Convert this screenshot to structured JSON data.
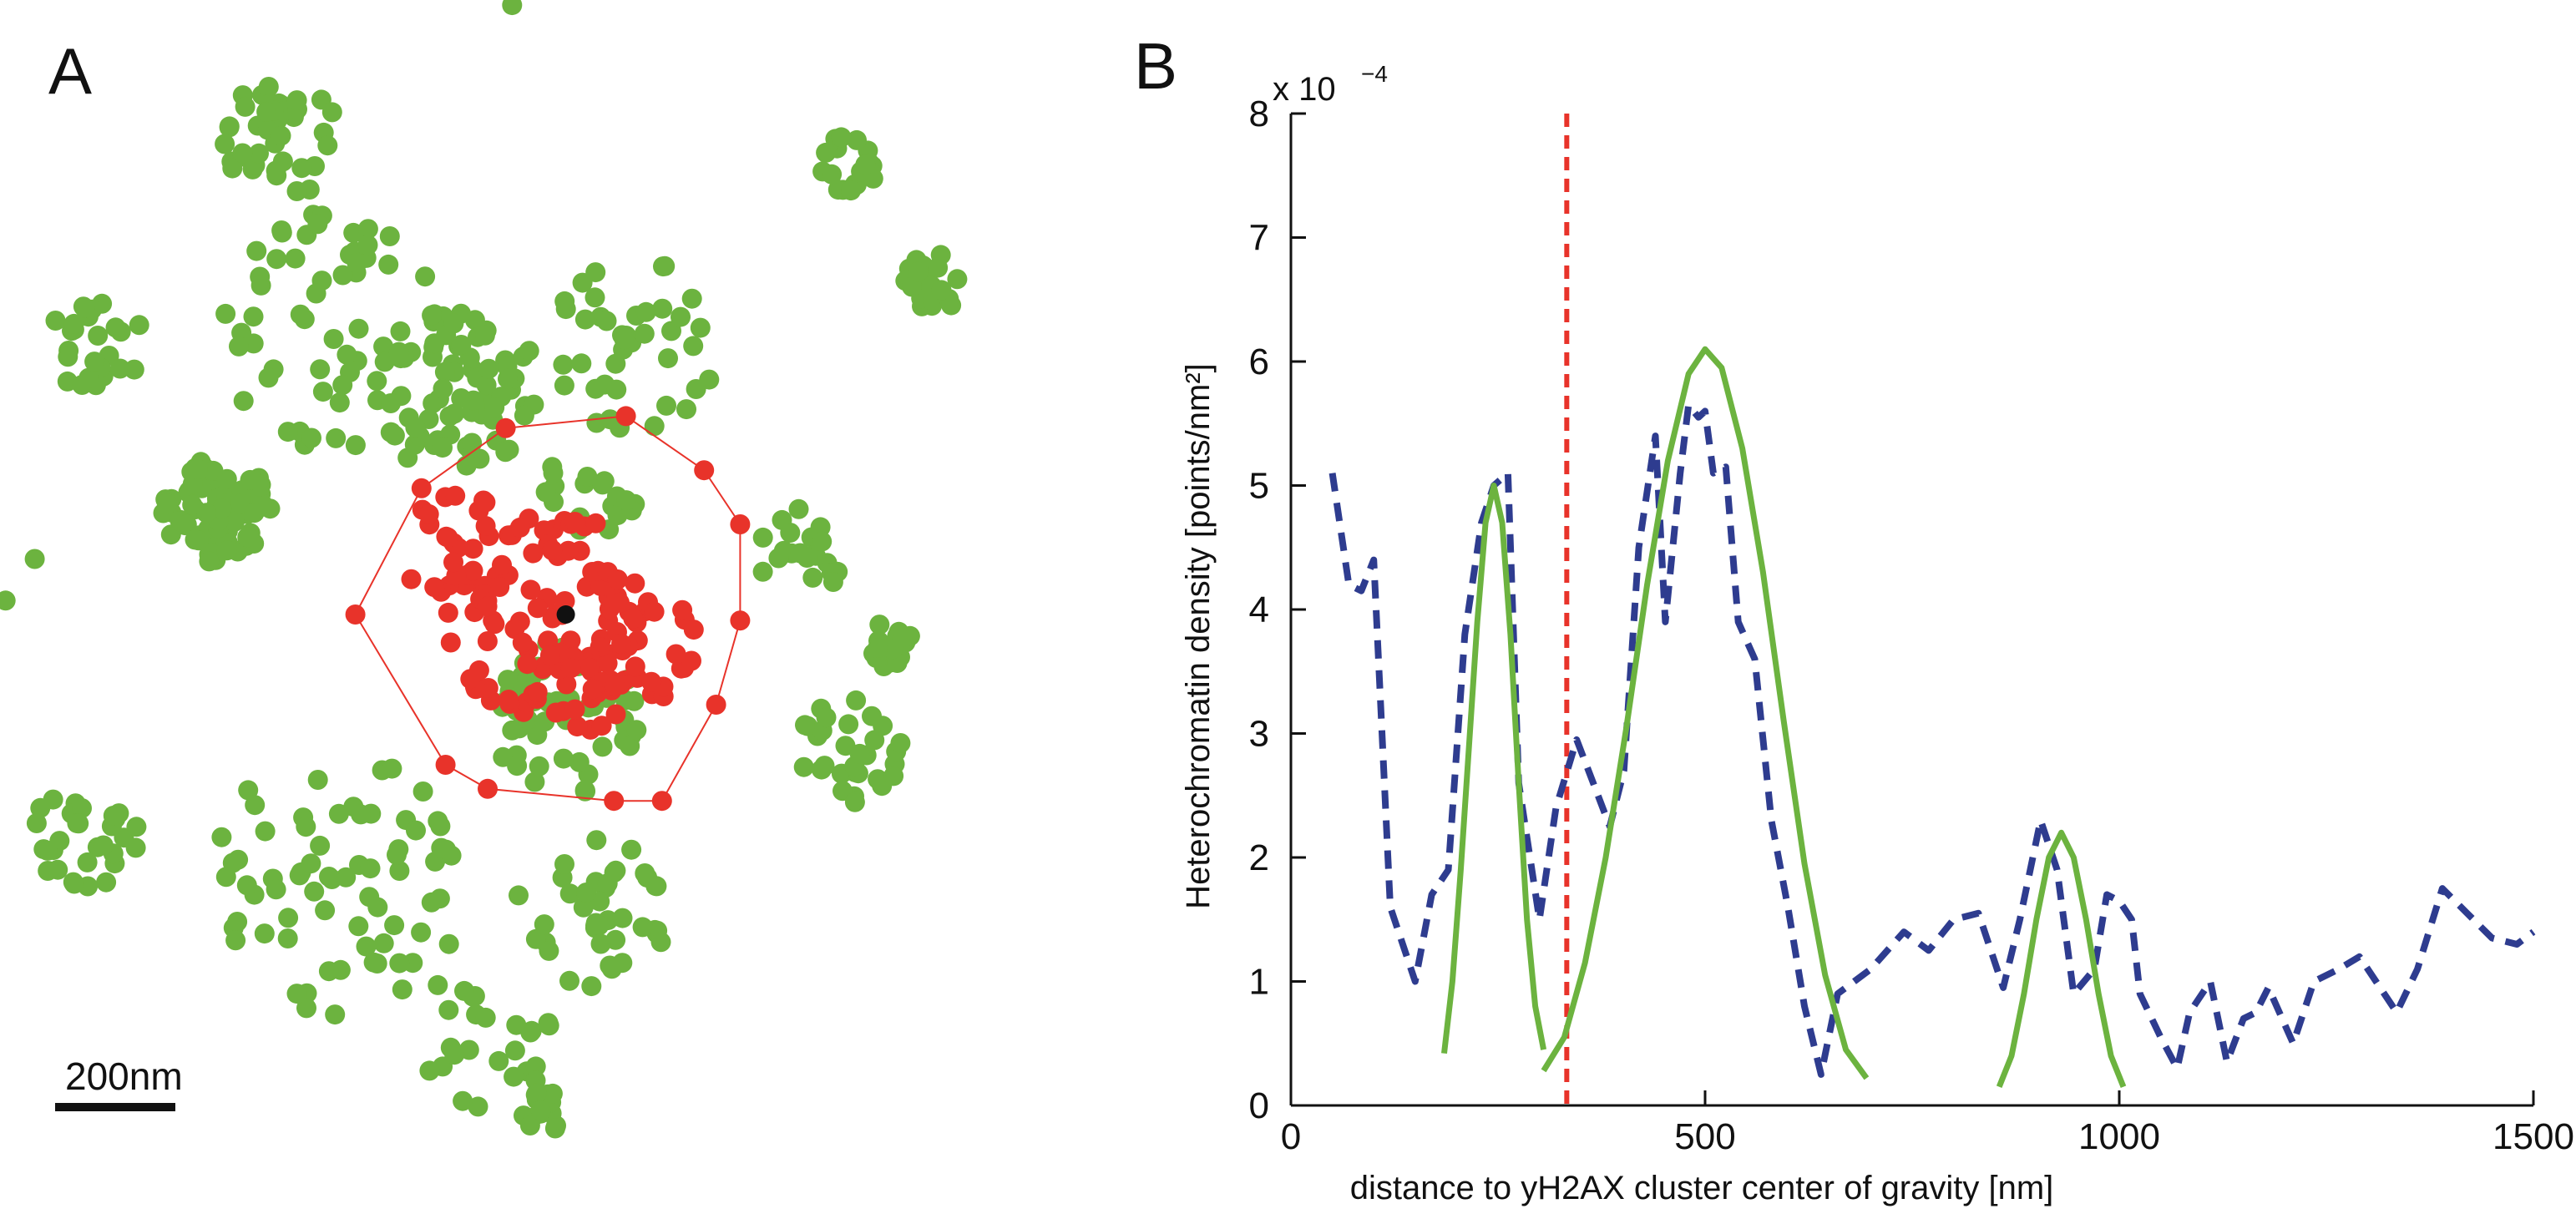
{
  "panels": {
    "a": {
      "letter": "A",
      "scale_bar_label": "200nm"
    },
    "b": {
      "letter": "B",
      "exponent_base": "x 10",
      "exponent_power": "−4"
    }
  },
  "colors": {
    "green_points": "#6cb33f",
    "red_points": "#e8332a",
    "center_point": "#111111",
    "dashed_density": "#2e3c8f",
    "fit_curves": "#6cb33f",
    "reference_line": "#e8332a",
    "axes": "#111111"
  },
  "chart_data": [
    {
      "type": "scatter",
      "panel": "A",
      "scale_bar": "200nm",
      "notes": "Localization scatter: green heterochromatin points, red yH2AX cluster points enclosed by convex hull, black centre of gravity.",
      "clusters_green": [
        {
          "cx": 0,
          "cy": -0.95,
          "r": 0.03,
          "n": 1
        },
        {
          "cx": -0.39,
          "cy": -0.74,
          "r": 0.1,
          "n": 40
        },
        {
          "cx": 0.55,
          "cy": -0.7,
          "r": 0.05,
          "n": 18
        },
        {
          "cx": 0.69,
          "cy": -0.5,
          "r": 0.05,
          "n": 22
        },
        {
          "cx": -0.7,
          "cy": -0.4,
          "r": 0.08,
          "n": 25
        },
        {
          "cx": -0.3,
          "cy": -0.42,
          "r": 0.2,
          "n": 60
        },
        {
          "cx": -0.1,
          "cy": -0.32,
          "r": 0.14,
          "n": 70
        },
        {
          "cx": 0.2,
          "cy": -0.4,
          "r": 0.15,
          "n": 40
        },
        {
          "cx": -0.5,
          "cy": -0.12,
          "r": 0.09,
          "n": 80
        },
        {
          "cx": -0.85,
          "cy": -0.05,
          "r": 0.1,
          "n": 8
        },
        {
          "cx": 0.12,
          "cy": -0.15,
          "r": 0.08,
          "n": 18
        },
        {
          "cx": 0.47,
          "cy": -0.05,
          "r": 0.08,
          "n": 20
        },
        {
          "cx": 0.62,
          "cy": 0.1,
          "r": 0.04,
          "n": 20
        },
        {
          "cx": 0.55,
          "cy": 0.28,
          "r": 0.09,
          "n": 30
        },
        {
          "cx": 0.08,
          "cy": 0.22,
          "r": 0.13,
          "n": 60
        },
        {
          "cx": -0.72,
          "cy": 0.42,
          "r": 0.09,
          "n": 30
        },
        {
          "cx": -0.3,
          "cy": 0.5,
          "r": 0.22,
          "n": 70
        },
        {
          "cx": 0.12,
          "cy": 0.55,
          "r": 0.13,
          "n": 40
        },
        {
          "cx": -0.05,
          "cy": 0.75,
          "r": 0.12,
          "n": 25
        },
        {
          "cx": 0.04,
          "cy": 0.88,
          "r": 0.04,
          "n": 18
        }
      ],
      "clusters_red": [
        {
          "cx": 0.05,
          "cy": 0.05,
          "r": 0.18,
          "n": 90
        },
        {
          "cx": -0.1,
          "cy": -0.05,
          "r": 0.1,
          "n": 25
        },
        {
          "cx": 0.18,
          "cy": 0.1,
          "r": 0.12,
          "n": 30
        },
        {
          "cx": 0.1,
          "cy": 0.18,
          "r": 0.08,
          "n": 15
        }
      ],
      "hull": [
        [
          -0.27,
          0.05
        ],
        [
          -0.16,
          -0.16
        ],
        [
          -0.02,
          -0.26
        ],
        [
          0.18,
          -0.28
        ],
        [
          0.31,
          -0.19
        ],
        [
          0.37,
          -0.1
        ],
        [
          0.37,
          0.06
        ],
        [
          0.33,
          0.2
        ],
        [
          0.24,
          0.36
        ],
        [
          0.16,
          0.36
        ],
        [
          -0.05,
          0.34
        ],
        [
          -0.12,
          0.3
        ]
      ],
      "center": [
        0.08,
        0.05
      ]
    },
    {
      "type": "line",
      "panel": "B",
      "xlabel": "distance to yH2AX cluster center of gravity [nm]",
      "ylabel": "Heterochromatin density [points/nm²]",
      "y_multiplier": "x 10^-4",
      "xlim": [
        0,
        1500
      ],
      "ylim": [
        0,
        8
      ],
      "xticks": [
        0,
        500,
        1000,
        1500
      ],
      "yticks": [
        0,
        1,
        2,
        3,
        4,
        5,
        6,
        7,
        8
      ],
      "reference_line_x": 333,
      "series": [
        {
          "style": "dashed",
          "x": [
            50,
            70,
            85,
            100,
            120,
            150,
            170,
            190,
            210,
            230,
            245,
            262,
            275,
            300,
            320,
            345,
            365,
            385,
            402,
            420,
            440,
            452,
            470,
            480,
            492,
            500,
            510,
            525,
            540,
            560,
            580,
            600,
            620,
            640,
            660,
            680,
            700,
            740,
            770,
            800,
            830,
            860,
            880,
            905,
            925,
            945,
            970,
            985,
            1000,
            1015,
            1025,
            1050,
            1070,
            1085,
            1110,
            1130,
            1150,
            1165,
            1180,
            1210,
            1235,
            1265,
            1290,
            1310,
            1335,
            1360,
            1390,
            1420,
            1450,
            1480,
            1500
          ],
          "y": [
            5.1,
            4.2,
            4.15,
            4.4,
            1.6,
            1.0,
            1.7,
            1.9,
            3.8,
            4.7,
            5.0,
            5.1,
            2.6,
            1.5,
            2.4,
            2.95,
            2.6,
            2.25,
            2.7,
            4.5,
            5.4,
            3.9,
            5.1,
            5.65,
            5.55,
            5.6,
            5.1,
            5.15,
            3.9,
            3.6,
            2.3,
            1.6,
            0.8,
            0.25,
            0.9,
            1.0,
            1.1,
            1.4,
            1.25,
            1.5,
            1.55,
            0.95,
            1.5,
            2.3,
            1.9,
            0.9,
            1.1,
            1.7,
            1.65,
            1.5,
            0.9,
            0.55,
            0.3,
            0.75,
            1.0,
            0.35,
            0.7,
            0.75,
            0.95,
            0.5,
            1.0,
            1.1,
            1.2,
            1.0,
            0.75,
            1.1,
            1.75,
            1.55,
            1.35,
            1.3,
            1.4
          ]
        },
        {
          "style": "solid",
          "x": [
            185,
            195,
            205,
            215,
            225,
            235,
            245,
            255,
            265,
            275,
            285,
            295,
            305
          ],
          "y": [
            0.42,
            1.0,
            1.9,
            2.9,
            3.9,
            4.7,
            5.0,
            4.7,
            3.8,
            2.6,
            1.5,
            0.8,
            0.45
          ]
        },
        {
          "style": "solid",
          "x": [
            305,
            330,
            355,
            380,
            405,
            430,
            455,
            480,
            500,
            520,
            545,
            570,
            595,
            620,
            645,
            670,
            695
          ],
          "y": [
            0.28,
            0.55,
            1.15,
            2.0,
            3.05,
            4.2,
            5.2,
            5.9,
            6.1,
            5.95,
            5.3,
            4.3,
            3.1,
            1.95,
            1.05,
            0.45,
            0.22
          ]
        },
        {
          "style": "solid",
          "x": [
            855,
            870,
            885,
            900,
            915,
            930,
            945,
            960,
            975,
            990,
            1005
          ],
          "y": [
            0.15,
            0.4,
            0.9,
            1.5,
            2.0,
            2.2,
            2.0,
            1.5,
            0.9,
            0.4,
            0.15
          ]
        }
      ]
    }
  ]
}
